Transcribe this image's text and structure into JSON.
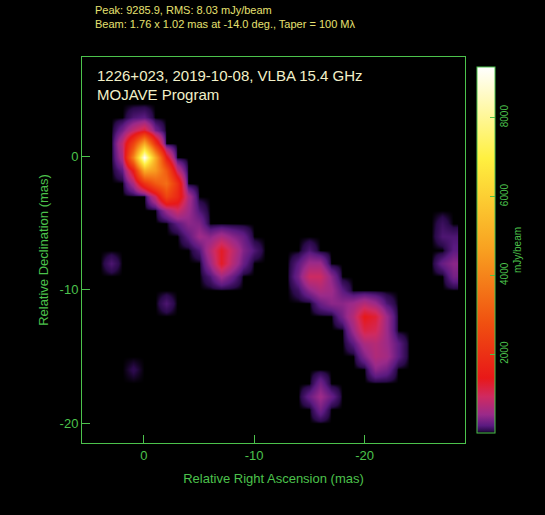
{
  "chart_data": {
    "type": "heatmap",
    "title": "1226+023, 2019-10-08, VLBA 15.4 GHz",
    "subtitle": "MOJAVE Program",
    "annotations": [
      "Peak: 9285.9, RMS: 8.03 mJy/beam",
      "Beam: 1.76 x 1.02 mas at -14.0 deg., Taper = 100 Mλ"
    ],
    "x_label": "Relative Right Ascension (mas)",
    "y_label": "Relative Declination (mas)",
    "colorbar_label": "mJy/beam",
    "x": [
      4,
      3,
      2,
      1,
      0,
      -1,
      -2,
      -3,
      -4,
      -5,
      -6,
      -7,
      -8,
      -9,
      -10,
      -11,
      -12,
      -13,
      -14,
      -15,
      -16,
      -17,
      -18,
      -19,
      -20,
      -21,
      -22,
      -23,
      -24,
      -25,
      -26,
      -27,
      -28
    ],
    "y": [
      6,
      5,
      4,
      3,
      2,
      1,
      0,
      -1,
      -2,
      -3,
      -4,
      -5,
      -6,
      -7,
      -8,
      -9,
      -10,
      -11,
      -12,
      -13,
      -14,
      -15,
      -16,
      -17,
      -18,
      -19,
      -20,
      -21
    ],
    "z": [
      [
        0,
        0,
        0,
        0,
        0,
        0,
        0,
        0,
        0,
        0,
        0,
        0,
        0,
        0,
        0,
        0,
        0,
        0,
        0,
        0,
        0,
        0,
        0,
        0,
        0,
        0,
        0,
        0,
        0,
        0,
        0,
        0,
        0
      ],
      [
        0,
        0,
        0,
        0,
        0,
        0,
        0,
        0,
        0,
        0,
        0,
        0,
        0,
        0,
        0,
        0,
        0,
        0,
        0,
        0,
        0,
        0,
        0,
        0,
        0,
        0,
        0,
        0,
        0,
        0,
        0,
        0,
        0
      ],
      [
        0,
        0,
        0,
        0,
        0,
        0,
        0,
        0,
        0,
        0,
        0,
        0,
        0,
        0,
        0,
        0,
        0,
        0,
        0,
        0,
        0,
        0,
        0,
        0,
        0,
        0,
        0,
        0,
        0,
        0,
        0,
        0,
        0
      ],
      [
        0,
        0,
        0,
        150,
        200,
        0,
        0,
        0,
        0,
        0,
        0,
        0,
        0,
        0,
        0,
        0,
        0,
        0,
        0,
        0,
        0,
        0,
        0,
        0,
        0,
        0,
        0,
        0,
        0,
        0,
        0,
        0,
        0
      ],
      [
        0,
        0,
        300,
        800,
        1200,
        300,
        0,
        0,
        0,
        0,
        0,
        0,
        0,
        0,
        0,
        0,
        0,
        0,
        0,
        0,
        0,
        0,
        0,
        0,
        0,
        0,
        0,
        0,
        0,
        0,
        0,
        0,
        0
      ],
      [
        0,
        0,
        800,
        2500,
        5000,
        2000,
        0,
        0,
        0,
        0,
        0,
        0,
        0,
        0,
        0,
        0,
        0,
        0,
        0,
        0,
        0,
        0,
        0,
        0,
        0,
        0,
        0,
        0,
        0,
        0,
        0,
        0,
        0
      ],
      [
        0,
        0,
        600,
        4000,
        9285.9,
        5000,
        1500,
        0,
        0,
        0,
        0,
        0,
        0,
        0,
        0,
        0,
        0,
        0,
        0,
        0,
        0,
        0,
        0,
        0,
        0,
        0,
        0,
        0,
        0,
        0,
        0,
        0,
        0
      ],
      [
        0,
        0,
        200,
        1500,
        5000,
        4500,
        3000,
        800,
        0,
        0,
        0,
        0,
        0,
        0,
        0,
        0,
        0,
        0,
        0,
        0,
        0,
        0,
        0,
        0,
        0,
        0,
        0,
        0,
        0,
        0,
        0,
        0,
        0
      ],
      [
        0,
        0,
        0,
        600,
        2000,
        3000,
        3500,
        2000,
        0,
        0,
        0,
        0,
        0,
        0,
        0,
        0,
        0,
        0,
        0,
        0,
        0,
        0,
        0,
        0,
        0,
        0,
        0,
        0,
        0,
        0,
        0,
        0,
        0
      ],
      [
        0,
        0,
        0,
        0,
        0,
        900,
        2500,
        1800,
        600,
        0,
        0,
        0,
        0,
        0,
        0,
        0,
        0,
        0,
        0,
        0,
        0,
        0,
        0,
        0,
        0,
        0,
        0,
        0,
        0,
        0,
        0,
        0,
        0
      ],
      [
        0,
        0,
        0,
        0,
        0,
        0,
        500,
        900,
        500,
        150,
        0,
        0,
        0,
        0,
        0,
        0,
        0,
        0,
        0,
        0,
        0,
        0,
        0,
        0,
        0,
        0,
        0,
        0,
        0,
        0,
        0,
        0,
        0
      ],
      [
        0,
        0,
        0,
        0,
        0,
        0,
        0,
        200,
        400,
        350,
        0,
        0,
        0,
        0,
        0,
        0,
        0,
        0,
        0,
        0,
        0,
        0,
        0,
        0,
        0,
        0,
        0,
        0,
        0,
        0,
        0,
        100,
        0
      ],
      [
        0,
        0,
        0,
        0,
        0,
        0,
        0,
        0,
        200,
        500,
        400,
        600,
        400,
        250,
        0,
        0,
        0,
        0,
        0,
        0,
        0,
        0,
        0,
        0,
        0,
        0,
        0,
        0,
        0,
        0,
        0,
        150,
        150
      ],
      [
        0,
        0,
        0,
        0,
        0,
        0,
        0,
        0,
        0,
        150,
        700,
        1300,
        800,
        350,
        150,
        0,
        0,
        0,
        0,
        150,
        0,
        0,
        0,
        0,
        0,
        0,
        0,
        0,
        0,
        0,
        0,
        0,
        200
      ],
      [
        0,
        150,
        0,
        0,
        0,
        0,
        0,
        0,
        0,
        0,
        500,
        1300,
        700,
        250,
        0,
        0,
        0,
        0,
        200,
        500,
        500,
        0,
        0,
        0,
        0,
        0,
        0,
        0,
        0,
        0,
        0,
        250,
        400
      ],
      [
        0,
        0,
        0,
        0,
        0,
        0,
        0,
        0,
        0,
        0,
        150,
        500,
        250,
        0,
        0,
        0,
        0,
        0,
        300,
        900,
        900,
        400,
        0,
        0,
        0,
        0,
        0,
        0,
        0,
        0,
        0,
        0,
        300
      ],
      [
        0,
        0,
        0,
        0,
        0,
        0,
        0,
        0,
        0,
        0,
        0,
        0,
        0,
        0,
        0,
        0,
        0,
        0,
        100,
        400,
        600,
        500,
        200,
        0,
        0,
        0,
        0,
        0,
        0,
        0,
        0,
        0,
        0
      ],
      [
        0,
        0,
        0,
        0,
        0,
        0,
        150,
        0,
        0,
        0,
        0,
        0,
        0,
        0,
        0,
        0,
        0,
        0,
        0,
        0,
        250,
        400,
        400,
        500,
        700,
        500,
        150,
        0,
        0,
        0,
        0,
        0,
        0
      ],
      [
        0,
        0,
        0,
        0,
        0,
        0,
        0,
        0,
        0,
        0,
        0,
        0,
        0,
        0,
        0,
        0,
        0,
        0,
        0,
        0,
        0,
        0,
        300,
        700,
        1400,
        1200,
        500,
        0,
        0,
        0,
        0,
        0,
        0
      ],
      [
        0,
        0,
        0,
        0,
        0,
        0,
        0,
        0,
        0,
        0,
        0,
        0,
        0,
        0,
        0,
        0,
        0,
        0,
        0,
        0,
        0,
        0,
        0,
        500,
        1100,
        1000,
        500,
        0,
        0,
        0,
        0,
        0,
        0
      ],
      [
        0,
        0,
        0,
        0,
        0,
        0,
        0,
        0,
        0,
        0,
        0,
        0,
        0,
        0,
        0,
        0,
        0,
        0,
        0,
        0,
        0,
        0,
        0,
        200,
        600,
        700,
        500,
        200,
        0,
        0,
        0,
        0,
        0
      ],
      [
        0,
        0,
        0,
        0,
        0,
        0,
        0,
        0,
        0,
        0,
        0,
        0,
        0,
        0,
        0,
        0,
        0,
        0,
        0,
        0,
        0,
        0,
        0,
        0,
        350,
        650,
        550,
        200,
        0,
        0,
        0,
        0,
        0
      ],
      [
        0,
        0,
        0,
        60,
        0,
        0,
        0,
        0,
        0,
        0,
        0,
        0,
        0,
        0,
        0,
        0,
        0,
        0,
        0,
        0,
        0,
        0,
        0,
        0,
        0,
        400,
        300,
        0,
        0,
        0,
        0,
        0,
        0
      ],
      [
        0,
        0,
        0,
        0,
        0,
        0,
        0,
        0,
        0,
        0,
        0,
        0,
        0,
        0,
        0,
        0,
        0,
        0,
        0,
        0,
        300,
        0,
        0,
        0,
        0,
        0,
        0,
        0,
        0,
        0,
        0,
        0,
        0
      ],
      [
        0,
        0,
        0,
        0,
        0,
        0,
        0,
        0,
        0,
        0,
        0,
        0,
        0,
        0,
        0,
        0,
        0,
        0,
        0,
        250,
        500,
        250,
        0,
        0,
        0,
        0,
        0,
        0,
        0,
        0,
        0,
        0,
        0
      ],
      [
        0,
        0,
        0,
        0,
        0,
        0,
        0,
        0,
        0,
        0,
        0,
        0,
        0,
        0,
        0,
        0,
        0,
        0,
        0,
        0,
        300,
        0,
        0,
        0,
        0,
        0,
        0,
        0,
        0,
        0,
        0,
        0,
        0
      ],
      [
        0,
        0,
        0,
        0,
        0,
        0,
        0,
        0,
        0,
        0,
        0,
        0,
        0,
        0,
        0,
        0,
        0,
        0,
        0,
        0,
        0,
        0,
        0,
        0,
        0,
        0,
        0,
        0,
        0,
        0,
        0,
        0,
        0
      ],
      [
        0,
        0,
        0,
        0,
        0,
        0,
        0,
        0,
        0,
        0,
        0,
        0,
        0,
        0,
        0,
        0,
        0,
        0,
        0,
        0,
        0,
        0,
        0,
        0,
        0,
        0,
        0,
        0,
        0,
        0,
        0,
        0,
        0
      ]
    ],
    "xlim": [
      5.6,
      -29.1
    ],
    "ylim": [
      -21.5,
      7.5
    ],
    "xticks": [
      0,
      -10,
      -20
    ],
    "yticks": [
      0,
      -10,
      -20
    ],
    "zlim": [
      0,
      9285.9
    ],
    "zticks": [
      2000,
      4000,
      6000,
      8000
    ],
    "grid": false
  }
}
